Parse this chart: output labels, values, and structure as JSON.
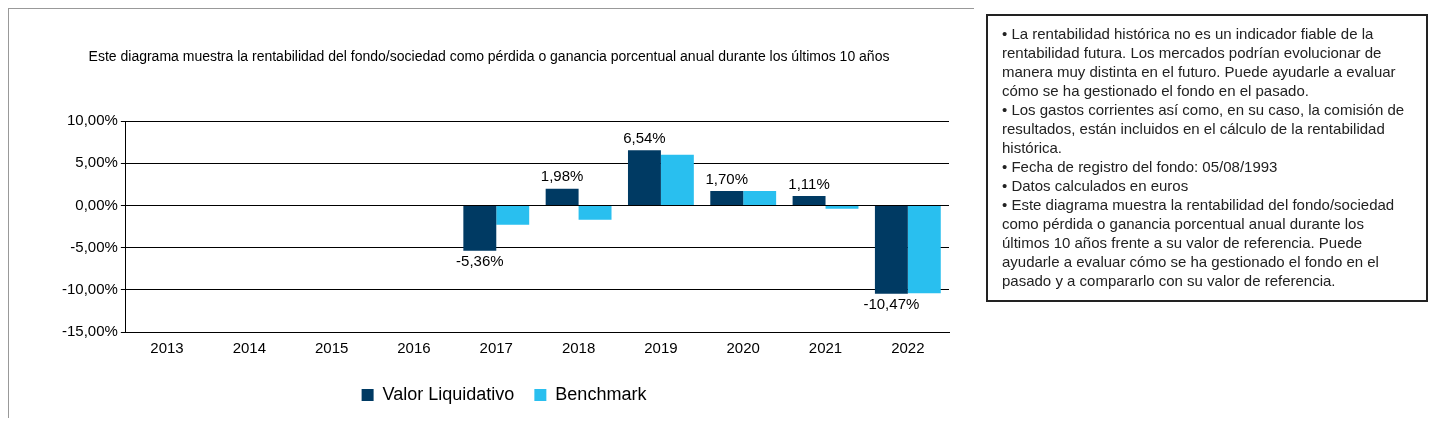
{
  "chart_data": {
    "type": "bar",
    "title": "Este diagrama  muestra la rentabilidad  del fondo/sociedad como pérdida  o ganancia porcentual anual durante los últimos  10  años",
    "categories": [
      "2013",
      "2014",
      "2015",
      "2016",
      "2017",
      "2018",
      "2019",
      "2020",
      "2021",
      "2022"
    ],
    "series": [
      {
        "name": "Valor Liquidativo",
        "color": "#003a63",
        "values": [
          null,
          null,
          null,
          null,
          -5.36,
          1.98,
          6.54,
          1.7,
          1.11,
          -10.47
        ],
        "value_labels": [
          null,
          null,
          null,
          null,
          "-5,36%",
          "1,98%",
          "6,54%",
          "1,70%",
          "1,11%",
          "-10,47%"
        ]
      },
      {
        "name": "Benchmark",
        "color": "#29bfef",
        "values": [
          null,
          null,
          null,
          null,
          -2.3,
          -1.7,
          6.0,
          1.7,
          -0.4,
          -10.4
        ]
      }
    ],
    "ylim": [
      -15,
      10
    ],
    "yticks": [
      {
        "value": -15,
        "label": "-15,00%"
      },
      {
        "value": -10,
        "label": "-10,00%"
      },
      {
        "value": -5,
        "label": "-5,00%"
      },
      {
        "value": 0,
        "label": "0,00%"
      },
      {
        "value": 5,
        "label": "5,00%"
      },
      {
        "value": 10,
        "label": "10,00%"
      }
    ],
    "grid": "y",
    "legend": "bottom",
    "annotations": [
      "• La rentabilidad  histórica no es un indicador fiable de la rentabilidad  futura. Los mercados podrían evolucionar de manera muy distinta en el futuro. Puede ayudarle a evaluar cómo se ha gestionado el fondo en el pasado.",
      "• Los gastos corrientes así como, en su caso, la comisión de resultados, están incluidos en el cálculo de la rentabilidad  histórica.",
      "• Fecha de registro del fondo: 05/08/1993",
      "• Datos calculados en euros",
      "• Este diagrama  muestra la rentabilidad  del fondo/sociedad como pérdida  o ganancia porcentual anual durante los últimos  10 años frente a su  valor de referencia. Puede ayudarle a evaluar cómo se ha gestionado el fondo en el pasado y a compararlo  con su  valor de referencia."
    ]
  }
}
